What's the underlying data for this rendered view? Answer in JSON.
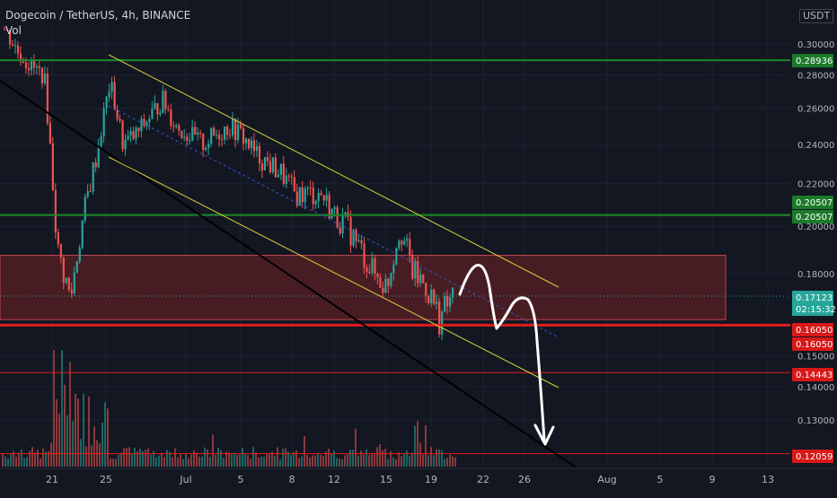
{
  "header": {
    "symbol": "Dogecoin / TetherUS, 4h, BINANCE",
    "volume_label": "Vol",
    "currency": "USDT"
  },
  "colors": {
    "background": "#131722",
    "grid": "#1e2230",
    "bull": "#26a69a",
    "bear": "#ef5350",
    "support_green": "#1b8a2a",
    "support_red": "#e31b1b",
    "zone": "#5a1f24",
    "channel": "#d8d23a",
    "midline": "#3a52c9",
    "trend_black": "#000000",
    "projection": "#ffffff",
    "axis_text": "#b2b5be"
  },
  "chart_data": {
    "type": "candlestick",
    "symbol": "DOGEUSDT",
    "interval": "4h",
    "exchange": "BINANCE",
    "x_axis": {
      "ticks": [
        "21",
        "25",
        "Jul",
        "5",
        "8",
        "12",
        "15",
        "19",
        "22",
        "26",
        "Aug",
        "5",
        "9",
        "13"
      ]
    },
    "y_axis": {
      "ticks": [
        "0.30000",
        "0.28000",
        "0.26000",
        "0.24000",
        "0.22000",
        "0.20000",
        "0.18000",
        "0.15000",
        "0.14000",
        "0.13000"
      ],
      "scale": "log"
    },
    "price_labels": [
      {
        "value": "0.28936",
        "kind": "support"
      },
      {
        "value": "0.20507",
        "kind": "support"
      },
      {
        "value": "0.20507",
        "kind": "support"
      },
      {
        "value": "0.17123",
        "kind": "current",
        "countdown": "02:15:32"
      },
      {
        "value": "0.16050",
        "kind": "resistance"
      },
      {
        "value": "0.16050",
        "kind": "resistance"
      },
      {
        "value": "0.14443",
        "kind": "resistance"
      },
      {
        "value": "0.12059",
        "kind": "resistance"
      }
    ],
    "horizontal_levels": [
      0.28936,
      0.20507,
      0.1605,
      0.14443,
      0.12059
    ],
    "zone": {
      "from": 0.1625,
      "to": 0.1875
    },
    "current_price": 0.17123,
    "price_path": [
      [
        "Jun 18",
        0.31
      ],
      [
        "Jun 19",
        0.295
      ],
      [
        "Jun 20",
        0.285
      ],
      [
        "Jun 21",
        0.28
      ],
      [
        "Jun 22",
        0.19
      ],
      [
        "Jun 22b",
        0.17
      ],
      [
        "Jun 23",
        0.205
      ],
      [
        "Jun 24",
        0.235
      ],
      [
        "Jun 25",
        0.275
      ],
      [
        "Jun 26",
        0.24
      ],
      [
        "Jun 27",
        0.245
      ],
      [
        "Jun 28",
        0.255
      ],
      [
        "Jun 29",
        0.265
      ],
      [
        "Jun 30",
        0.25
      ],
      [
        "Jul 1",
        0.245
      ],
      [
        "Jul 2",
        0.24
      ],
      [
        "Jul 3",
        0.245
      ],
      [
        "Jul 4",
        0.25
      ],
      [
        "Jul 5",
        0.245
      ],
      [
        "Jul 6",
        0.235
      ],
      [
        "Jul 7",
        0.23
      ],
      [
        "Jul 8",
        0.225
      ],
      [
        "Jul 9",
        0.215
      ],
      [
        "Jul 10",
        0.215
      ],
      [
        "Jul 11",
        0.215
      ],
      [
        "Jul 12",
        0.205
      ],
      [
        "Jul 13",
        0.2
      ],
      [
        "Jul 14",
        0.19
      ],
      [
        "Jul 15",
        0.18
      ],
      [
        "Jul 16",
        0.175
      ],
      [
        "Jul 17",
        0.2
      ],
      [
        "Jul 18",
        0.18
      ],
      [
        "Jul 19",
        0.175
      ],
      [
        "Jul 20",
        0.163
      ],
      [
        "Jul 20b",
        0.171
      ]
    ]
  }
}
